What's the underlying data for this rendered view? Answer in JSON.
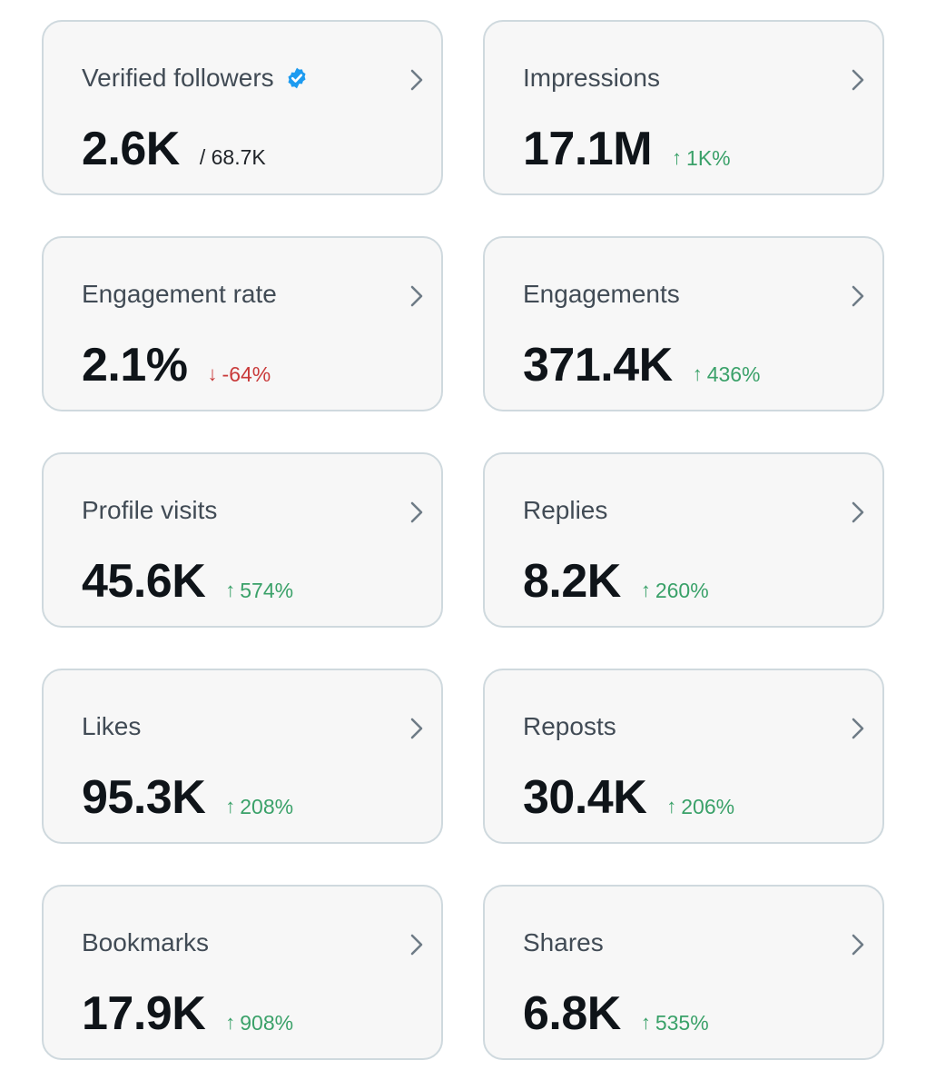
{
  "colors": {
    "card_border": "#cfd9de",
    "card_background": "#f7f7f7",
    "up": "#3aa169",
    "down": "#c93a3a",
    "verified": "#1d9bf0"
  },
  "cards": [
    {
      "title": "Verified followers",
      "value": "2.6K",
      "sub": "/ 68.7K",
      "icon": "verified-badge-icon"
    },
    {
      "title": "Impressions",
      "value": "17.1M",
      "change": "1K%",
      "direction": "up"
    },
    {
      "title": "Engagement rate",
      "value": "2.1%",
      "change": "-64%",
      "direction": "down"
    },
    {
      "title": "Engagements",
      "value": "371.4K",
      "change": "436%",
      "direction": "up"
    },
    {
      "title": "Profile visits",
      "value": "45.6K",
      "change": "574%",
      "direction": "up"
    },
    {
      "title": "Replies",
      "value": "8.2K",
      "change": "260%",
      "direction": "up"
    },
    {
      "title": "Likes",
      "value": "95.3K",
      "change": "208%",
      "direction": "up"
    },
    {
      "title": "Reposts",
      "value": "30.4K",
      "change": "206%",
      "direction": "up"
    },
    {
      "title": "Bookmarks",
      "value": "17.9K",
      "change": "908%",
      "direction": "up"
    },
    {
      "title": "Shares",
      "value": "6.8K",
      "change": "535%",
      "direction": "up"
    }
  ],
  "arrows": {
    "up": "↑",
    "down": "↓"
  }
}
